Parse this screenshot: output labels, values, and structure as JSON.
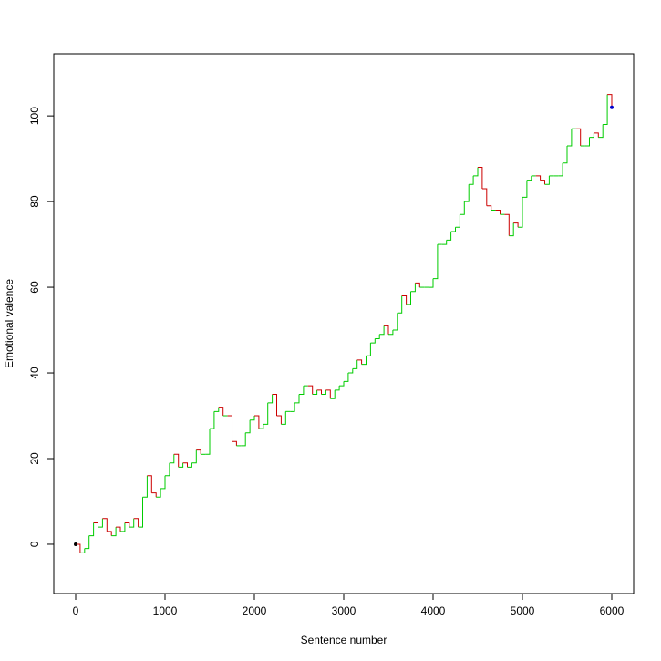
{
  "chart_data": {
    "type": "step",
    "xlabel": "Sentence number",
    "ylabel": "Emotional valence",
    "xlim": [
      -245,
      6245
    ],
    "ylim": [
      -11.5,
      114.5
    ],
    "xticks": [
      0,
      1000,
      2000,
      3000,
      4000,
      5000,
      6000
    ],
    "yticks": [
      0,
      20,
      40,
      60,
      80,
      100
    ],
    "up_color": "#00cc00",
    "down_color": "#cc0000",
    "start_color": "#000000",
    "end_color": "#0000cc",
    "series": [
      {
        "x": [
          0,
          50,
          100,
          150,
          200,
          250,
          300,
          350,
          400,
          450,
          500,
          550,
          600,
          650,
          700,
          750,
          800,
          850,
          900,
          950,
          1000,
          1050,
          1100,
          1150,
          1200,
          1250,
          1300,
          1350,
          1400,
          1450,
          1500,
          1550,
          1600,
          1650,
          1700,
          1750,
          1800,
          1850,
          1900,
          1950,
          2000,
          2050,
          2100,
          2150,
          2200,
          2250,
          2300,
          2350,
          2400,
          2450,
          2500,
          2550,
          2600,
          2650,
          2700,
          2750,
          2800,
          2850,
          2900,
          2950,
          3000,
          3050,
          3100,
          3150,
          3200,
          3250,
          3300,
          3350,
          3400,
          3450,
          3500,
          3550,
          3600,
          3650,
          3700,
          3750,
          3800,
          3850,
          3900,
          3950,
          4000,
          4050,
          4100,
          4150,
          4200,
          4250,
          4300,
          4350,
          4400,
          4450,
          4500,
          4550,
          4600,
          4650,
          4700,
          4750,
          4800,
          4850,
          4900,
          4950,
          5000,
          5050,
          5100,
          5150,
          5200,
          5250,
          5300,
          5350,
          5400,
          5450,
          5500,
          5550,
          5600,
          5650,
          5700,
          5750,
          5800,
          5850,
          5900,
          5950,
          6000
        ],
        "values": [
          0,
          -2,
          -1,
          2,
          5,
          4,
          6,
          3,
          2,
          4,
          3,
          5,
          4,
          6,
          4,
          11,
          16,
          12,
          11,
          13,
          16,
          19,
          21,
          18,
          19,
          18,
          19,
          22,
          21,
          21,
          27,
          31,
          32,
          30,
          30,
          24,
          23,
          23,
          26,
          29,
          30,
          27,
          28,
          33,
          35,
          30,
          28,
          31,
          31,
          33,
          35,
          37,
          37,
          35,
          36,
          35,
          36,
          34,
          36,
          37,
          38,
          40,
          41,
          43,
          42,
          44,
          47,
          48,
          49,
          51,
          49,
          50,
          54,
          58,
          56,
          59,
          61,
          60,
          60,
          60,
          62,
          70,
          70,
          71,
          73,
          74,
          77,
          80,
          84,
          86,
          88,
          83,
          79,
          78,
          78,
          77,
          77,
          72,
          75,
          74,
          81,
          85,
          86,
          86,
          85,
          84,
          86,
          86,
          86,
          89,
          93,
          97,
          97,
          93,
          93,
          95,
          96,
          95,
          98,
          105,
          102
        ]
      }
    ]
  }
}
